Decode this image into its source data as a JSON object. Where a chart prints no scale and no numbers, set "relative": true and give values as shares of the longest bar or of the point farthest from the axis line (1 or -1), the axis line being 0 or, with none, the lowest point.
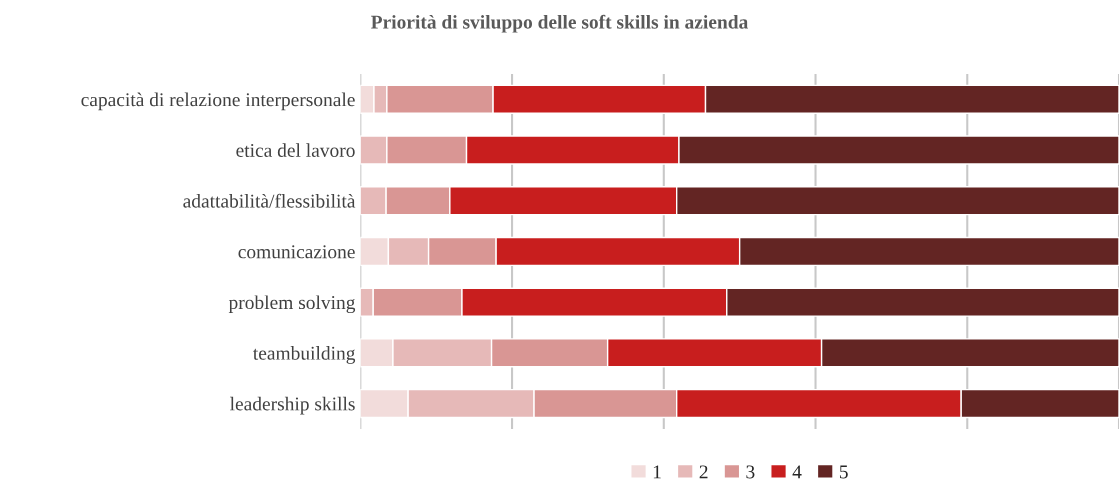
{
  "chart_data": {
    "type": "bar",
    "orientation": "horizontal",
    "stacked": true,
    "relative": true,
    "title": "Priorità di sviluppo delle soft skills in azienda",
    "categories": [
      "capacità di relazione interpersonale",
      "etica del lavoro",
      "adattabilità/flessibilità",
      "comunicazione",
      "problem solving",
      "teambuilding",
      "leadership skills"
    ],
    "series": [
      {
        "name": "1",
        "color": "#f2dcdb",
        "values": [
          0.018,
          0,
          0,
          0.037,
          0,
          0.043,
          0.063
        ]
      },
      {
        "name": "2",
        "color": "#e6b9b8",
        "values": [
          0.017,
          0.035,
          0.034,
          0.053,
          0.017,
          0.13,
          0.166
        ]
      },
      {
        "name": "3",
        "color": "#d99694",
        "values": [
          0.14,
          0.105,
          0.084,
          0.089,
          0.117,
          0.153,
          0.188
        ]
      },
      {
        "name": "4",
        "color": "#c81e1e",
        "values": [
          0.28,
          0.28,
          0.299,
          0.321,
          0.349,
          0.282,
          0.375
        ]
      },
      {
        "name": "5",
        "color": "#632523",
        "values": [
          0.545,
          0.58,
          0.583,
          0.5,
          0.517,
          0.392,
          0.208
        ]
      }
    ],
    "grid": "x",
    "legend": "bottom"
  }
}
